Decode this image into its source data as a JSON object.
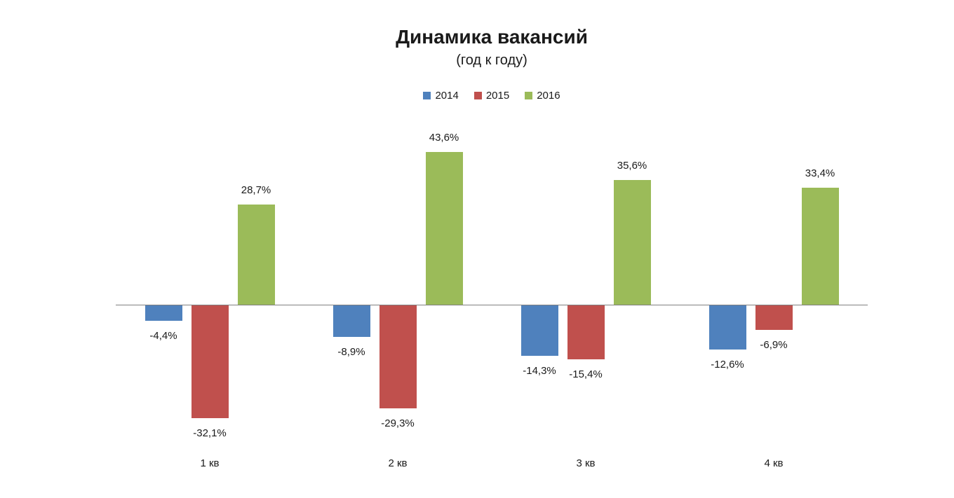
{
  "title": "Динамика вакансий",
  "subtitle": "(год к году)",
  "legend": [
    {
      "label": "2014",
      "color": "#4F81BD"
    },
    {
      "label": "2015",
      "color": "#C0504D"
    },
    {
      "label": "2016",
      "color": "#9BBB59"
    }
  ],
  "chart_data": {
    "type": "bar",
    "title": "Динамика вакансий",
    "subtitle": "(год к году)",
    "categories": [
      "1 кв",
      "2 кв",
      "3 кв",
      "4 кв"
    ],
    "series": [
      {
        "name": "2014",
        "color": "#4F81BD",
        "values": [
          -4.4,
          -8.9,
          -14.3,
          -12.6
        ],
        "labels": [
          "-4,4%",
          "-8,9%",
          "-14,3%",
          "-12,6%"
        ]
      },
      {
        "name": "2015",
        "color": "#C0504D",
        "values": [
          -32.1,
          -29.3,
          -15.4,
          -6.9
        ],
        "labels": [
          "-32,1%",
          "-29,3%",
          "-15,4%",
          "-6,9%"
        ]
      },
      {
        "name": "2016",
        "color": "#9BBB59",
        "values": [
          28.7,
          43.6,
          35.6,
          33.4
        ],
        "labels": [
          "28,7%",
          "43,6%",
          "35,6%",
          "33,4%"
        ]
      }
    ],
    "unit": "%",
    "ylim": [
      -40,
      55
    ],
    "grid": false,
    "value_labels": true,
    "legend_position": "top",
    "axis_line_color": "#808080"
  }
}
